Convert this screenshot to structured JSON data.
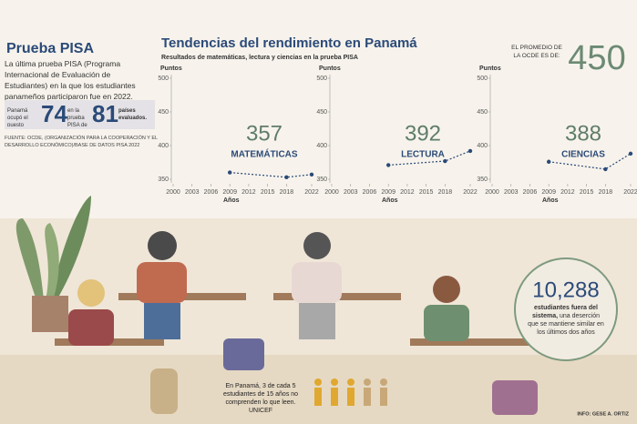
{
  "sidebar": {
    "title": "Prueba PISA",
    "intro": "La última prueba PISA (Programa Internacional de Evaluación de Estudiantes) en la que los estudiantes panameños participaron fue en 2022.",
    "rank_prefix": "Panamá ocupó el puesto",
    "rank": "74",
    "rank_mid": "en la prueba PISA de",
    "countries": "81",
    "countries_suffix": "países evaluados.",
    "source": "FUENTE: OCDE, (ORGANIZACIÓN PARA LA COOPERACIÓN Y EL DESARROLLO ECONÓMICO)/BASE DE DATOS PISA 2022"
  },
  "header": {
    "title": "Tendencias del rendimiento en Panamá",
    "subtitle": "Resultados de matemáticas, lectura y ciencias en la prueba PISA"
  },
  "oecd": {
    "label": "EL PROMEDIO DE LA OCDE ES DE:",
    "value": "450"
  },
  "chart_data": [
    {
      "type": "line",
      "y_label": "Puntos",
      "x_label": "Años",
      "x": [
        2009,
        2018,
        2022
      ],
      "xlim": [
        2000,
        2022
      ],
      "xticks": [
        2000,
        2003,
        2006,
        2009,
        2012,
        2015,
        2018,
        2022
      ],
      "ylim": [
        350,
        500
      ],
      "yticks": [
        350,
        400,
        450,
        500
      ],
      "series": [
        {
          "name": "MATEMÁTICAS",
          "color": "#2b4a78",
          "values": [
            360,
            353,
            357
          ]
        }
      ]
    },
    {
      "type": "line",
      "y_label": "Puntos",
      "x_label": "Años",
      "x": [
        2009,
        2018,
        2022
      ],
      "xlim": [
        2000,
        2022
      ],
      "xticks": [
        2000,
        2003,
        2006,
        2009,
        2012,
        2015,
        2018,
        2022
      ],
      "ylim": [
        350,
        500
      ],
      "yticks": [
        350,
        400,
        450,
        500
      ],
      "series": [
        {
          "name": "LECTURA",
          "color": "#2b4a78",
          "values": [
            371,
            377,
            392
          ]
        }
      ]
    },
    {
      "type": "line",
      "y_label": "Puntos",
      "x_label": "Años",
      "x": [
        2009,
        2018,
        2022
      ],
      "xlim": [
        2000,
        2022
      ],
      "xticks": [
        2000,
        2003,
        2006,
        2009,
        2012,
        2015,
        2018,
        2022
      ],
      "ylim": [
        350,
        500
      ],
      "yticks": [
        350,
        400,
        450,
        500
      ],
      "series": [
        {
          "name": "CIENCIAS",
          "color": "#2b4a78",
          "values": [
            376,
            365,
            388
          ]
        }
      ]
    }
  ],
  "dropout": {
    "value": "10,288",
    "bold": "estudiantes fuera del sistema,",
    "text": "una deserción que se mantiene similar en los últimos dos años"
  },
  "unicef": {
    "text": "En Panamá, 3 de cada 5 estudiantes de 15 años no comprenden lo que leen. UNICEF"
  },
  "credit": "INFO: GESE A. ORTIZ"
}
